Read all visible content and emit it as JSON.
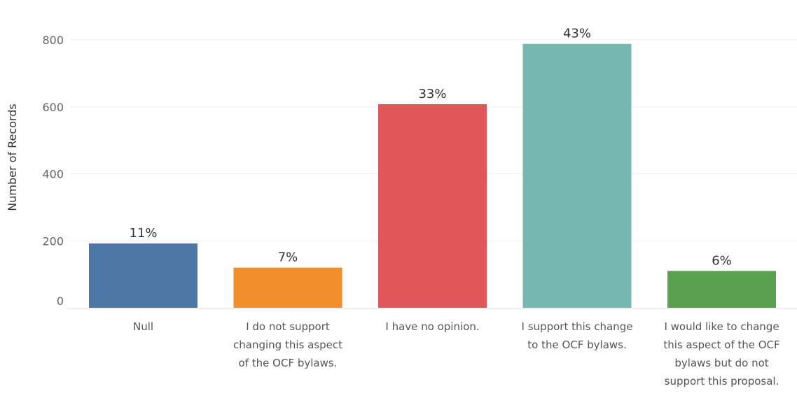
{
  "chart_data": {
    "type": "bar",
    "title": "",
    "xlabel": "",
    "ylabel": "Number of Records",
    "ylim": [
      0,
      880
    ],
    "yticks": [
      0,
      200,
      400,
      600,
      800
    ],
    "grid": true,
    "categories": [
      [
        "Null"
      ],
      [
        "I do not support",
        "changing this aspect",
        "of the OCF bylaws."
      ],
      [
        "I have no opinion."
      ],
      [
        "I support this change",
        "to the OCF bylaws."
      ],
      [
        "I would like to change",
        "this aspect of the OCF",
        "bylaws but do not",
        "support this proposal."
      ]
    ],
    "values": [
      192,
      120,
      608,
      788,
      110
    ],
    "labels": [
      "11%",
      "7%",
      "33%",
      "43%",
      "6%"
    ],
    "colors": [
      "#4e79a7",
      "#f28e2b",
      "#e15759",
      "#76b7b2",
      "#59a14f"
    ]
  }
}
